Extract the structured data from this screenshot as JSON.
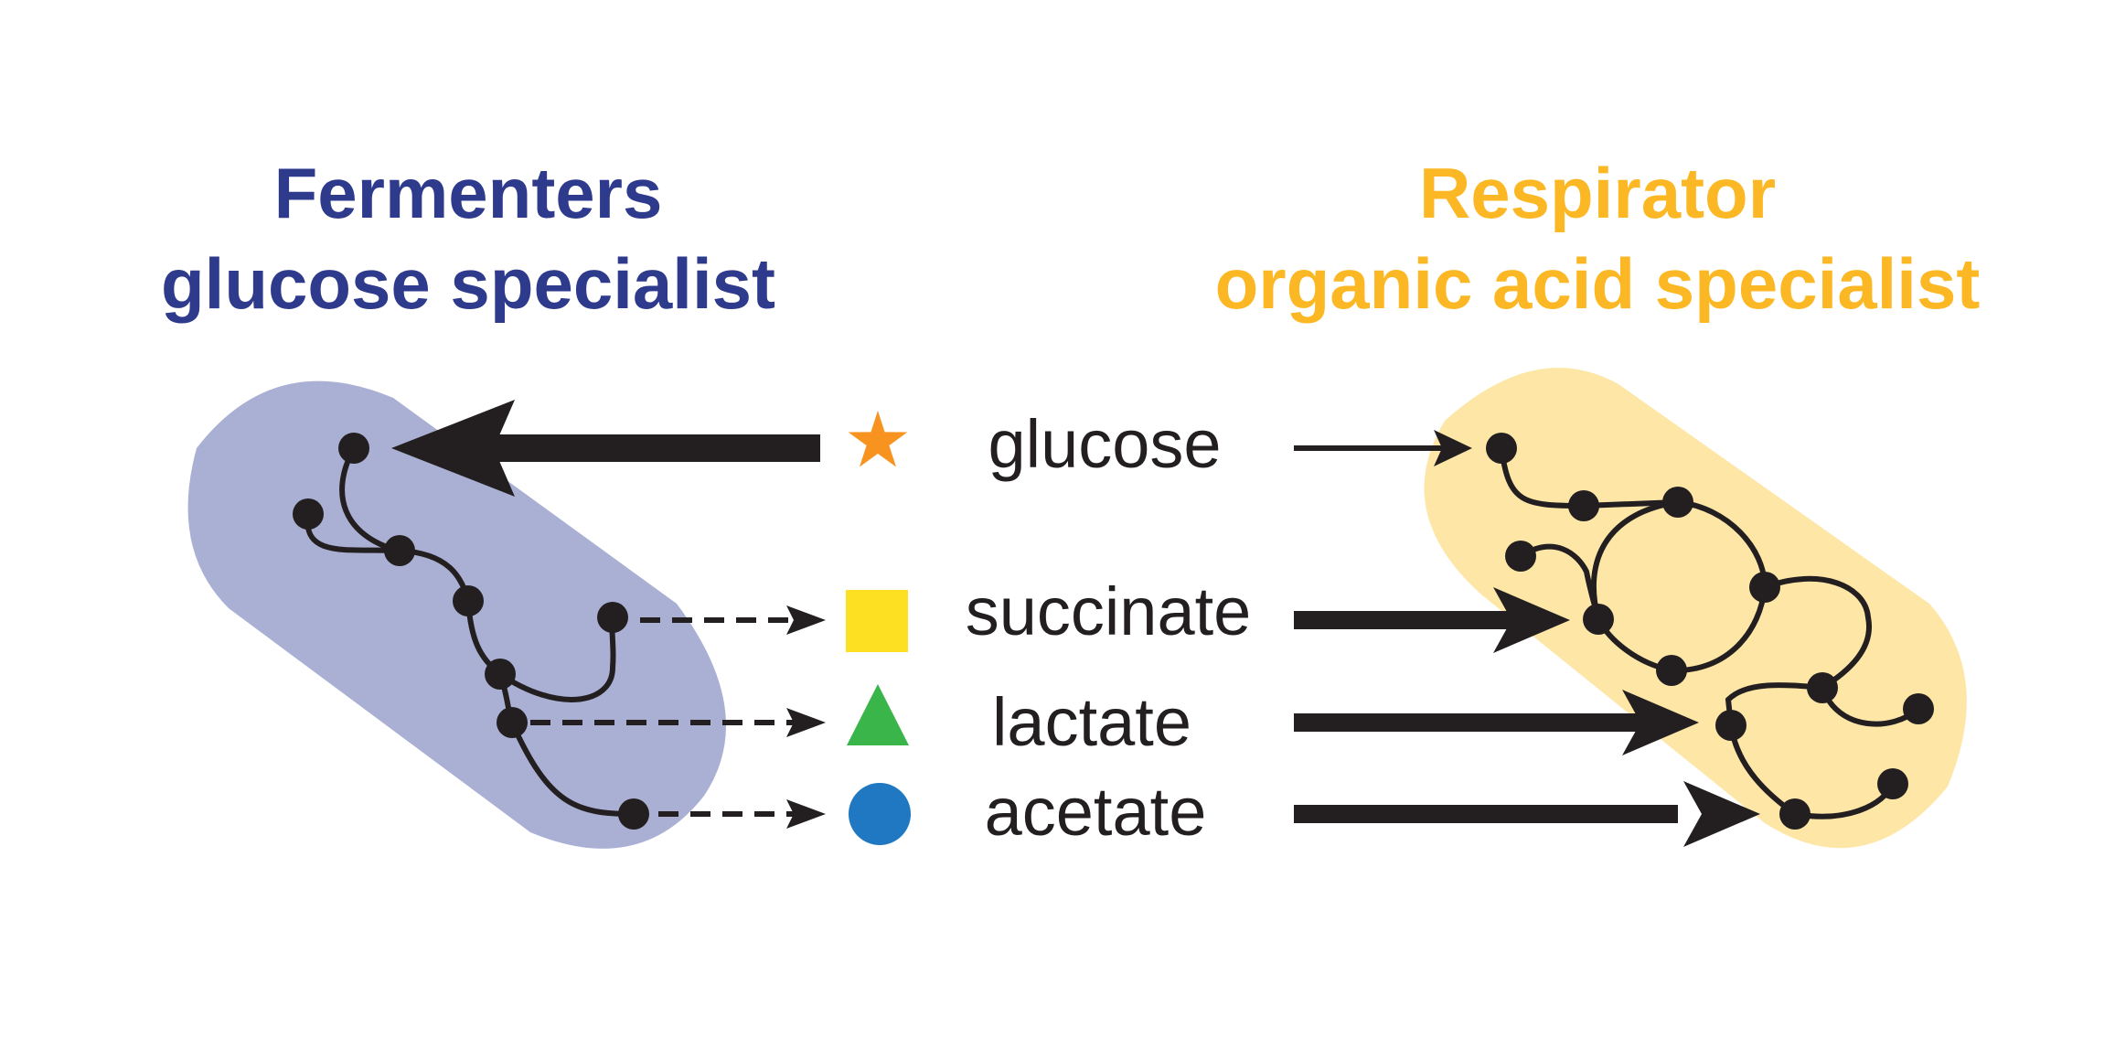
{
  "left": {
    "title_line1": "Fermenters",
    "title_line2": "glucose specialist",
    "title_color": "#2e3a8c",
    "cell_color": "#aab0d4"
  },
  "right": {
    "title_line1": "Respirator",
    "title_line2": "organic acid specialist",
    "title_color": "#fbb824",
    "cell_color": "#fde6a6"
  },
  "metabolites": [
    {
      "label": "glucose",
      "icon": "star-icon",
      "color": "#f7931e"
    },
    {
      "label": "succinate",
      "icon": "square-icon",
      "color": "#fde021"
    },
    {
      "label": "lactate",
      "icon": "triangle-icon",
      "color": "#39b54a"
    },
    {
      "label": "acetate",
      "icon": "circle-icon",
      "color": "#1f78c1"
    }
  ],
  "ink_color": "#231f20"
}
